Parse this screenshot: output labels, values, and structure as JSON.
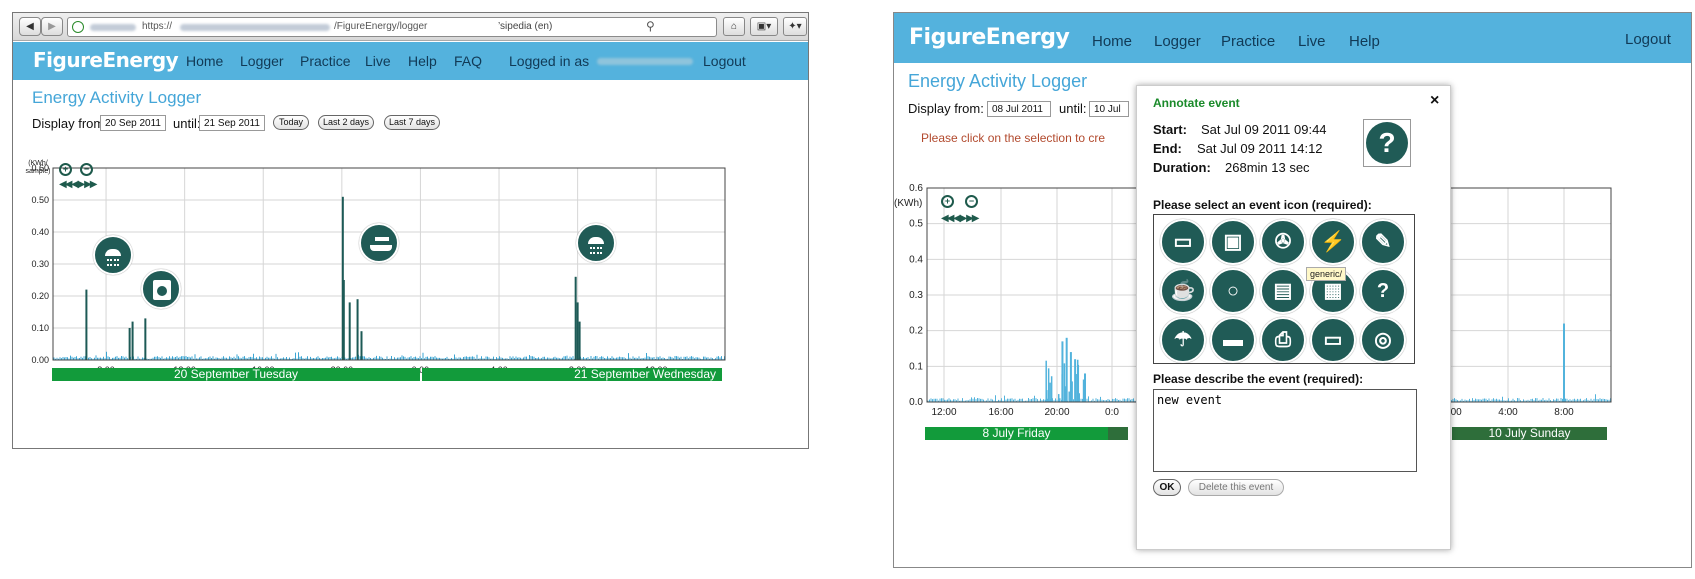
{
  "left": {
    "browser": {
      "back_icon": "back-arrow-icon",
      "forward_icon": "forward-arrow-icon",
      "url_prefix": "https://",
      "url_path": "/FigureEnergy/logger",
      "search_engine": "’sipedia (en)",
      "home_icon": "home-icon",
      "bookmark_icon": "bookmark-icon",
      "addon_icon": "addon-icon"
    },
    "header": {
      "logo": "FigureEnergy",
      "nav": [
        "Home",
        "Logger",
        "Practice",
        "Live",
        "Help",
        "FAQ"
      ],
      "logged_in": "Logged in as",
      "logout": "Logout"
    },
    "page": {
      "title": "Energy Activity Logger",
      "display_from_label": "Display from:",
      "from_value": "20 Sep 2011",
      "until_label": "until:",
      "until_value": "21 Sep 2011",
      "btn_today": "Today",
      "btn_last2": "Last 2 days",
      "btn_last7": "Last 7 days"
    }
  },
  "right": {
    "header": {
      "logo": "FigureEnergy",
      "nav": [
        "Home",
        "Logger",
        "Practice",
        "Live",
        "Help"
      ],
      "logout": "Logout"
    },
    "page": {
      "title": "Energy Activity Logger",
      "display_from_label": "Display from:",
      "from_value": "08 Jul 2011",
      "until_label": "until:",
      "until_value": "10 Jul",
      "hint": "Please click on the selection to cre"
    },
    "modal": {
      "title": "Annotate event",
      "close": "×",
      "start_label": "Start:",
      "start_value": "Sat Jul 09 2011 09:44",
      "end_label": "End:",
      "end_value": "Sat Jul 09 2011 14:12",
      "duration_label": "Duration:",
      "duration_value": "268min 13 sec",
      "icon_prompt": "Please select an event icon (required):",
      "tooltip": "generic/",
      "describe_prompt": "Please describe the event (required):",
      "description": "new event",
      "ok": "OK",
      "delete": "Delete this event",
      "selected_icon": "question-mark-icon",
      "icon_names": [
        "laptop-icon",
        "washing-machine-icon",
        "fan-icon",
        "plug-icon",
        "hairdryer-icon",
        "kettle-icon",
        "search-icon",
        "microwave-icon",
        "toaster-icon",
        "question-icon",
        "shower-icon",
        "iron-icon",
        "printer-icon",
        "monitor-icon",
        "dryer-icon"
      ]
    }
  },
  "chart_data": [
    {
      "type": "bar",
      "y_unit_label": "(KWh/ sample)",
      "ylim": [
        0,
        0.6
      ],
      "yticks": [
        "0.00",
        "0.10",
        "0.20",
        "0.30",
        "0.40",
        "0.50",
        "0.60"
      ],
      "xticks": [
        "8:00",
        "12:00",
        "16:00",
        "20:00",
        "0:00",
        "4:00",
        "8:00",
        "12:00"
      ],
      "x_hours": [
        8,
        12,
        16,
        20,
        24,
        28,
        32,
        36
      ],
      "x_range_hours": [
        5.3,
        39.5
      ],
      "days": [
        "20 September Tuesday",
        "21 September Wednesday"
      ],
      "spikes": [
        {
          "x": 7.0,
          "y": 0.22
        },
        {
          "x": 9.2,
          "y": 0.1
        },
        {
          "x": 9.35,
          "y": 0.12
        },
        {
          "x": 10.0,
          "y": 0.13
        },
        {
          "x": 20.05,
          "y": 0.51
        },
        {
          "x": 20.1,
          "y": 0.25
        },
        {
          "x": 20.4,
          "y": 0.18
        },
        {
          "x": 20.8,
          "y": 0.19
        },
        {
          "x": 21.0,
          "y": 0.09
        },
        {
          "x": 31.9,
          "y": 0.26
        },
        {
          "x": 32.0,
          "y": 0.18
        },
        {
          "x": 32.1,
          "y": 0.12
        }
      ],
      "annotation_icons": [
        "shower-icon",
        "washing-machine-icon",
        "iron-icon",
        "shower-icon"
      ],
      "colors": {
        "spike": "#1d5a56",
        "baseline": "#3aa5d3",
        "day_bar": "#129b3b"
      }
    },
    {
      "type": "bar",
      "y_unit_label": "(KWh)",
      "ylim": [
        0,
        0.6
      ],
      "yticks": [
        "0.0",
        "0.1",
        "0.2",
        "0.3",
        "0.4",
        "0.5",
        "0.6"
      ],
      "xticks": [
        "12:00",
        "16:00",
        "20:00",
        "0:0",
        "0:00",
        "4:00",
        "8:00"
      ],
      "days": [
        "8 July Friday",
        "10 July Sunday"
      ],
      "spikes": [
        {
          "x": 20.4,
          "y": 0.17
        },
        {
          "x": 20.7,
          "y": 0.18
        },
        {
          "x": 21.0,
          "y": 0.14
        },
        {
          "x": 21.3,
          "y": 0.12
        },
        {
          "x": 22.0,
          "y": 0.08
        },
        {
          "x": 56.0,
          "y": 0.22
        }
      ],
      "colors": {
        "spike": "#52b3dc",
        "day_bar_1": "#129b3b",
        "day_bar_2": "#2e6e3a"
      }
    }
  ]
}
